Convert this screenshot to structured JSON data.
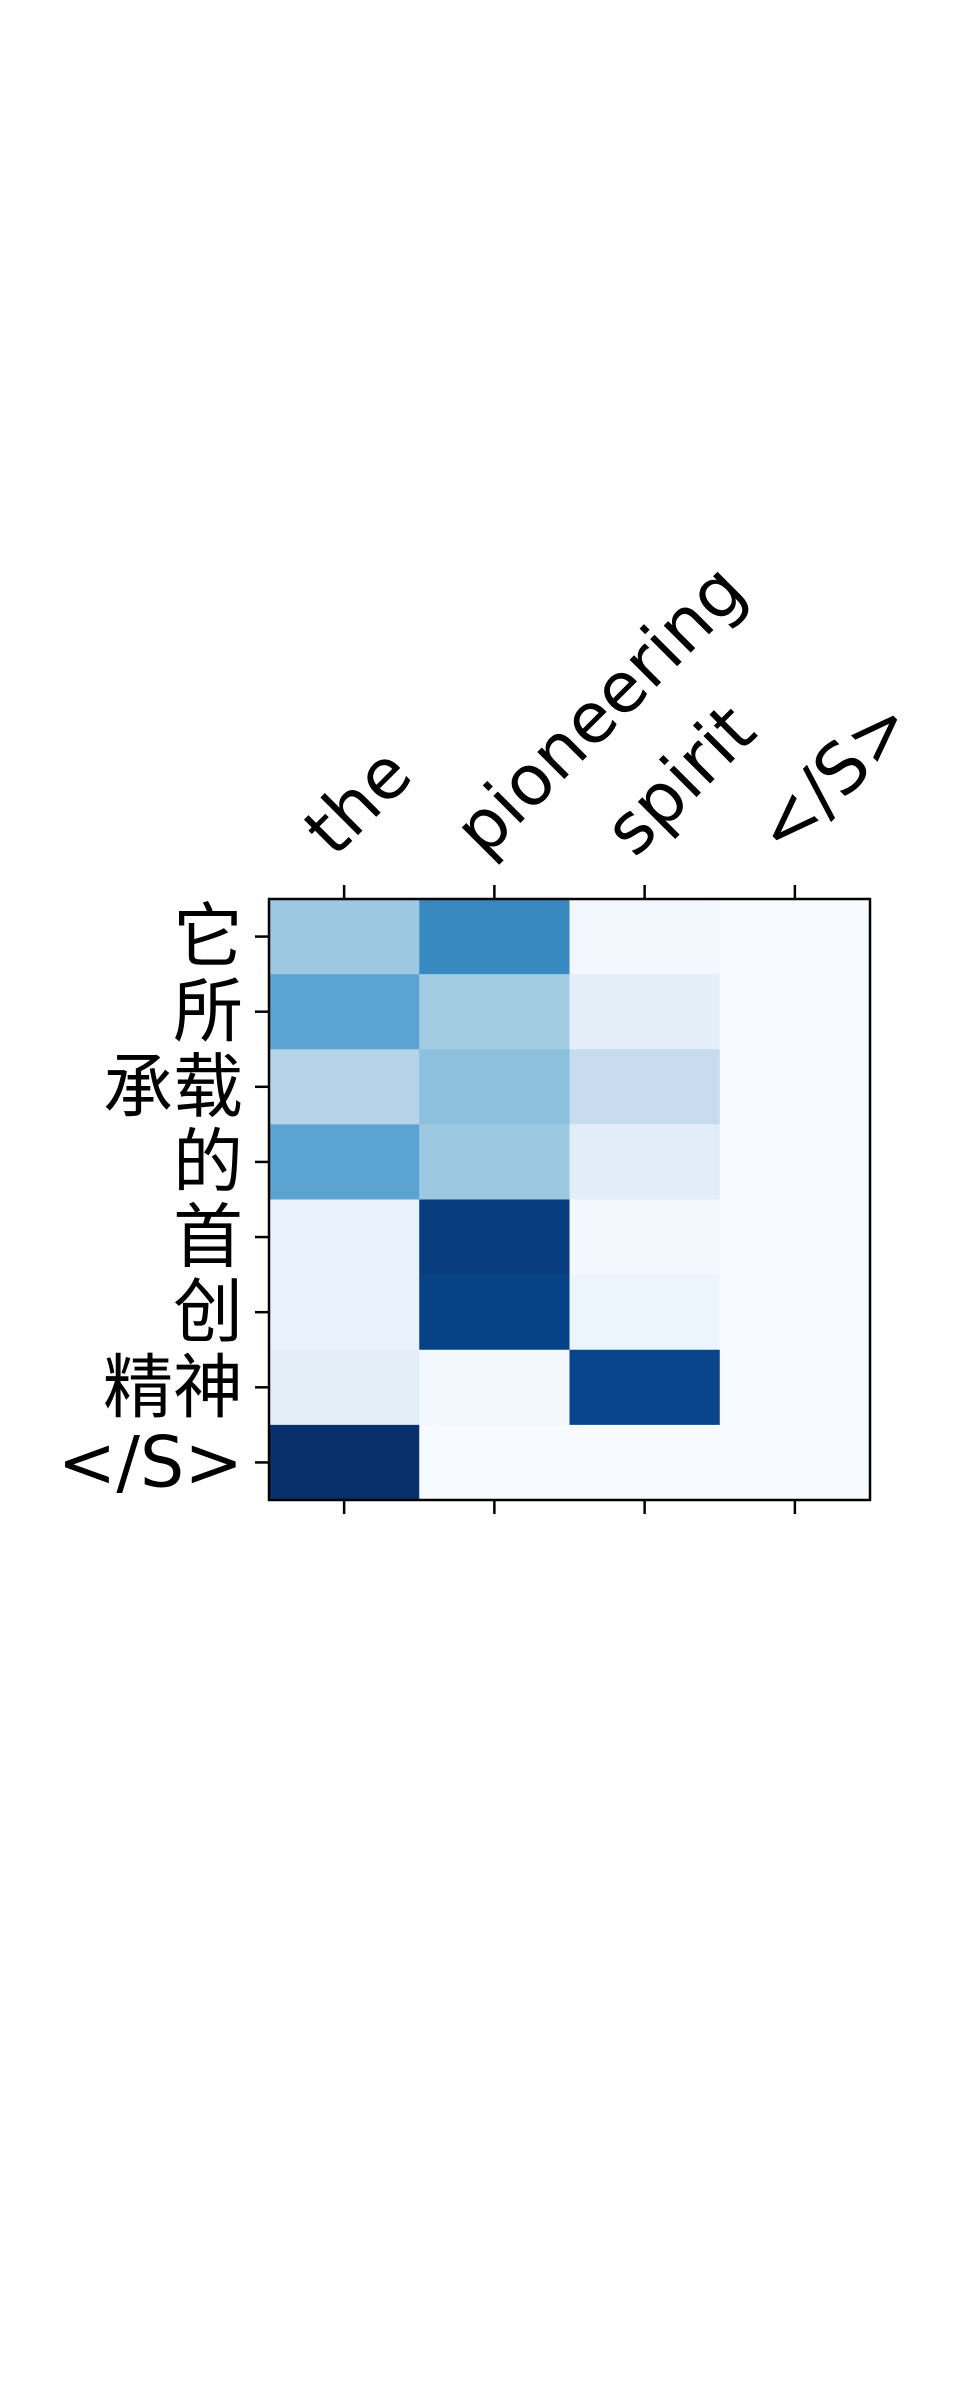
{
  "chart_data": {
    "type": "heatmap",
    "title": "",
    "xlabel": "",
    "ylabel": "",
    "x_tick_position": "top",
    "colormap": "Blues",
    "value_range": [
      0,
      1
    ],
    "grid": false,
    "legend": "none",
    "x_labels": [
      "the",
      "pioneering",
      "spirit",
      "</S>"
    ],
    "y_labels": [
      "它",
      "所",
      "承载",
      "的",
      "首",
      "创",
      "精神",
      "</S>"
    ],
    "values": [
      [
        0.38,
        0.66,
        0.03,
        0.0
      ],
      [
        0.55,
        0.36,
        0.1,
        0.0
      ],
      [
        0.3,
        0.42,
        0.24,
        0.0
      ],
      [
        0.55,
        0.38,
        0.11,
        0.0
      ],
      [
        0.07,
        0.95,
        0.02,
        0.0
      ],
      [
        0.07,
        0.93,
        0.05,
        0.0
      ],
      [
        0.1,
        0.02,
        0.92,
        0.0
      ],
      [
        1.0,
        0.0,
        0.0,
        0.0
      ]
    ]
  }
}
